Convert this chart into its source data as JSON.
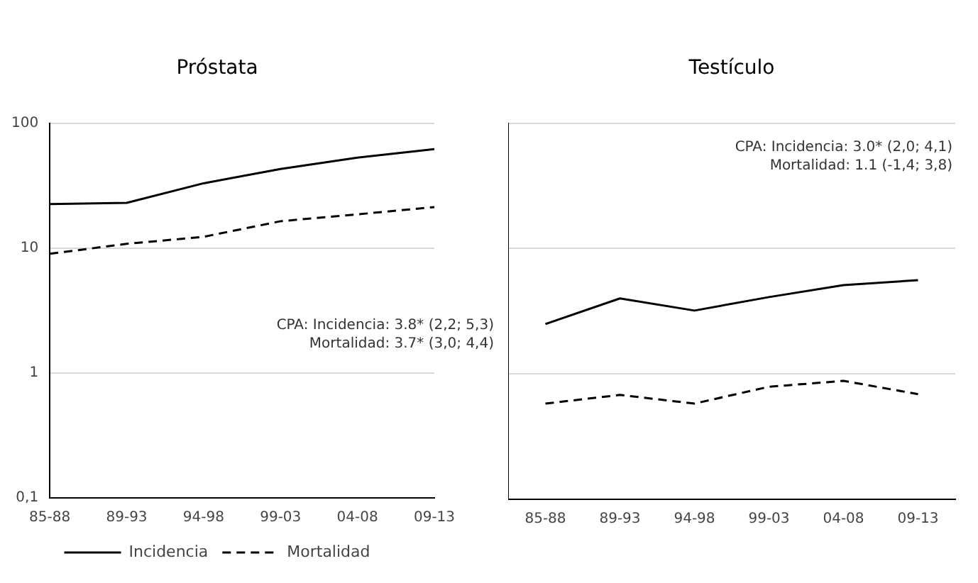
{
  "chart_data": [
    {
      "type": "line",
      "title": "Próstata",
      "categories": [
        "85-88",
        "89-93",
        "94-98",
        "99-03",
        "04-08",
        "09-13"
      ],
      "log": "y",
      "ylim": [
        0.1,
        100
      ],
      "yticks": [
        {
          "value": 0.1,
          "label": "0,1"
        },
        1,
        10,
        100
      ],
      "grid": "y",
      "legend": "bottom",
      "marker": "none",
      "series": [
        {
          "name": "Incidencia",
          "color": "#000000",
          "line_style": "solid",
          "values": [
            22.5,
            23,
            33,
            43,
            53,
            62
          ]
        },
        {
          "name": "Mortalidad",
          "color": "#000000",
          "line_style": "dashed",
          "values": [
            9.0,
            10.8,
            12.3,
            16.4,
            18.6,
            21.3
          ]
        }
      ],
      "annotations": [
        "CPA: Incidencia: 3.8* (2,2; 5,3)",
        "Mortalidad: 3.7* (3,0; 4,4)"
      ]
    },
    {
      "type": "line",
      "title": "Testículo",
      "categories": [
        "85-88",
        "89-93",
        "94-98",
        "99-03",
        "04-08",
        "09-13"
      ],
      "log": "y",
      "ylim": [
        0.1,
        100
      ],
      "yticks": [
        0.1,
        1,
        10,
        100
      ],
      "grid": "y",
      "tick_labels": "x",
      "marker": "none",
      "series": [
        {
          "color": "#000000",
          "line_style": "solid",
          "values": [
            2.5,
            4.0,
            3.2,
            4.1,
            5.1,
            5.6
          ]
        },
        {
          "color": "#000000",
          "line_style": "dashed",
          "values": [
            0.58,
            0.68,
            0.58,
            0.79,
            0.88,
            0.69
          ]
        }
      ],
      "annotations": [
        "CPA: Incidencia: 3.0* (2,0; 4,1)",
        "Mortalidad: 1.1 (-1,4; 3,8)"
      ]
    }
  ]
}
